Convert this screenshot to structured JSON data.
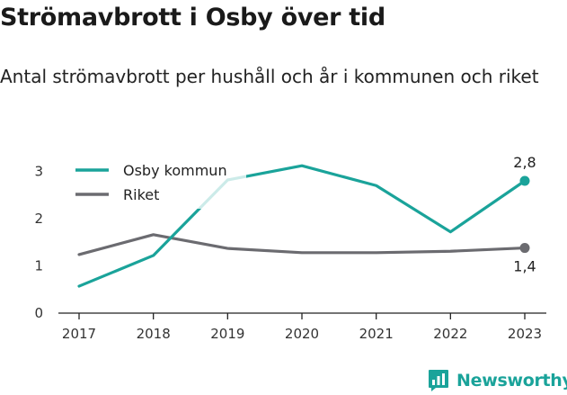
{
  "title": "Strömavbrott i Osby över tid",
  "subtitle": "Antal strömavbrott per hushåll och år i kommunen och riket",
  "brand": {
    "name": "Newsworthy",
    "icon": "bar-chart-logo-icon",
    "color": "#1aa39a"
  },
  "chart_data": {
    "type": "line",
    "title": "Strömavbrott i Osby över tid",
    "subtitle": "Antal strömavbrott per hushåll och år i kommunen och riket",
    "xlabel": "",
    "ylabel": "",
    "categories": [
      "2017",
      "2018",
      "2019",
      "2020",
      "2021",
      "2022",
      "2023"
    ],
    "ylim": [
      0,
      3.2
    ],
    "yticks": [
      0,
      1,
      2,
      3
    ],
    "grid": false,
    "legend_position": "top-left",
    "series": [
      {
        "name": "Osby kommun",
        "color": "#1aa39a",
        "values": [
          0.57,
          1.22,
          2.82,
          3.12,
          2.7,
          1.72,
          2.8
        ],
        "end_label": "2,8"
      },
      {
        "name": "Riket",
        "color": "#6b6b70",
        "values": [
          1.24,
          1.66,
          1.37,
          1.28,
          1.28,
          1.31,
          1.38
        ],
        "end_label": "1,4"
      }
    ]
  }
}
